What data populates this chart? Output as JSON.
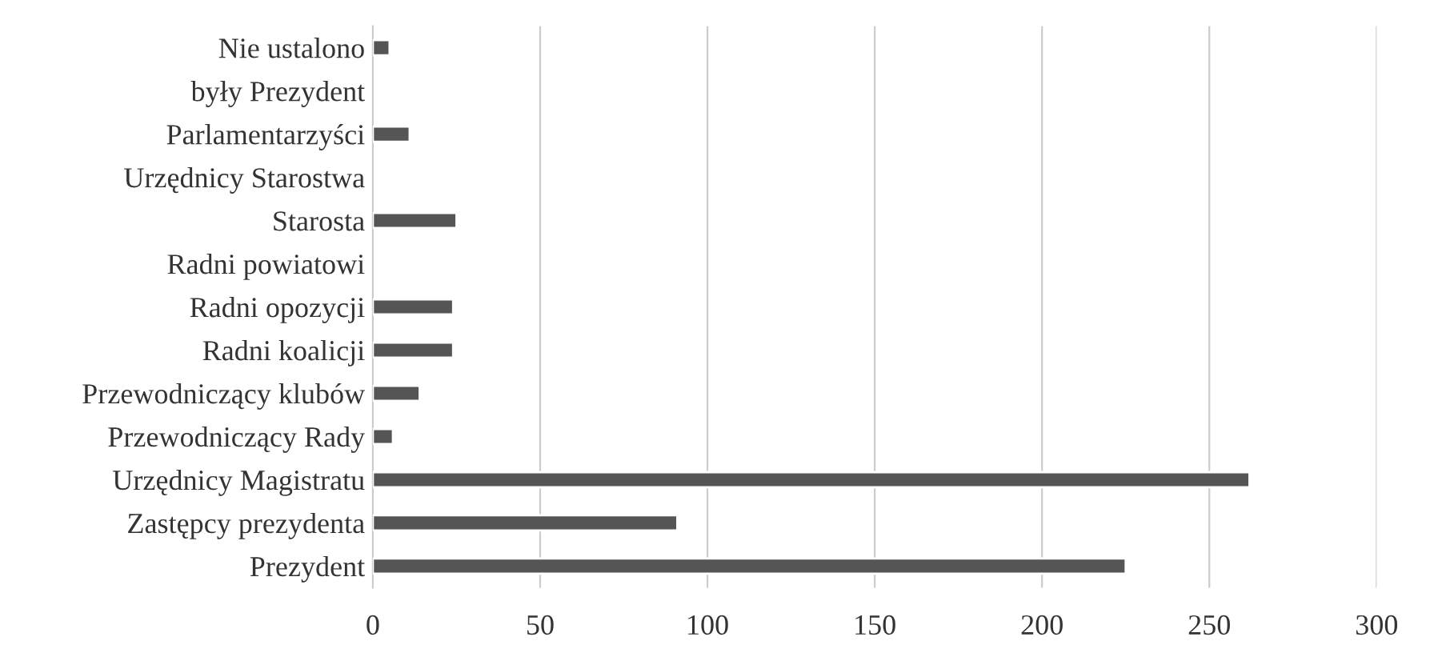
{
  "chart_data": {
    "type": "bar",
    "orientation": "horizontal",
    "categories": [
      "Nie ustalono",
      "były Prezydent",
      "Parlamentarzyści",
      "Urzędnicy Starostwa",
      "Starosta",
      "Radni powiatowi",
      "Radni opozycji",
      "Radni koalicji",
      "Przewodniczący klubów",
      "Przewodniczący Rady",
      "Urzędnicy Magistratu",
      "Zastępcy prezydenta",
      "Prezydent"
    ],
    "values": [
      5,
      null,
      11,
      null,
      25,
      null,
      24,
      24,
      14,
      6,
      262,
      91,
      225
    ],
    "color": "#555555",
    "xlim": [
      0,
      300
    ],
    "xticks": [
      0,
      50,
      100,
      150,
      200,
      250,
      300
    ],
    "grid": "x"
  }
}
